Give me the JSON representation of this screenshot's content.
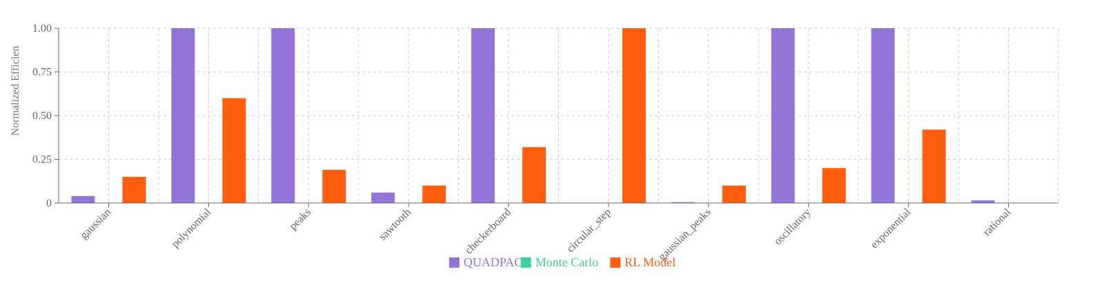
{
  "chart_data": {
    "type": "bar",
    "title": "",
    "xlabel": "",
    "ylabel": "Normalized Efficien",
    "ylim": [
      0,
      1
    ],
    "yticks": [
      0,
      0.25,
      0.5,
      0.75,
      1.0
    ],
    "ytick_labels": [
      "0",
      "0.25",
      "0.50",
      "0.75",
      "1.00"
    ],
    "grid": true,
    "legend_position": "bottom-center",
    "categories": [
      "gaussian",
      "polynomial",
      "peaks",
      "sawtooth",
      "checkerboard",
      "circular_step",
      "gaussian_peaks",
      "oscillatory",
      "exponential",
      "rational"
    ],
    "series": [
      {
        "name": "QUADPACK",
        "color": "#9374d8",
        "values": [
          0.04,
          1.0,
          1.0,
          0.06,
          1.0,
          0.0,
          0.005,
          1.0,
          1.0,
          0.015
        ]
      },
      {
        "name": "Monte Carlo",
        "color": "#3ecf9a",
        "values": [
          0,
          0,
          0,
          0,
          0,
          0,
          0,
          0,
          0,
          0
        ]
      },
      {
        "name": "RL Model",
        "color": "#ff5e0e",
        "values": [
          0.15,
          0.6,
          0.19,
          0.1,
          0.32,
          1.0,
          0.1,
          0.2,
          0.42,
          0.002
        ]
      }
    ]
  }
}
